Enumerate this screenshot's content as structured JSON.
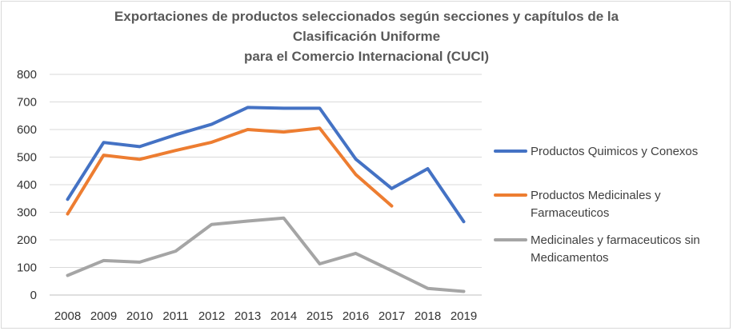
{
  "chart_data": {
    "type": "line",
    "title_lines": [
      "Exportaciones de productos seleccionados según secciones y capítulos de la",
      "Clasificación Uniforme",
      "para el Comercio Internacional (CUCI)"
    ],
    "xlabel": "",
    "ylabel": "",
    "categories": [
      "2008",
      "2009",
      "2010",
      "2011",
      "2012",
      "2013",
      "2014",
      "2015",
      "2016",
      "2017",
      "2018",
      "2019"
    ],
    "ylim": [
      0,
      800
    ],
    "yticks": [
      "0",
      "100",
      "200",
      "300",
      "400",
      "500",
      "600",
      "700",
      "800"
    ],
    "grid": "horizontal",
    "legend_position": "right",
    "series": [
      {
        "name": "Productos Quimicos y Conexos",
        "legend_lines": [
          "Productos Quimicos y Conexos"
        ],
        "color": "#4472C4",
        "values": [
          347,
          553,
          538,
          581,
          619,
          680,
          677,
          677,
          493,
          386,
          458,
          266
        ]
      },
      {
        "name": "Productos Medicinales y Farmaceuticos",
        "legend_lines": [
          "Productos Medicinales y",
          "Farmaceuticos"
        ],
        "color": "#ED7D31",
        "values": [
          294,
          507,
          492,
          524,
          554,
          600,
          591,
          605,
          437,
          323,
          null,
          null
        ]
      },
      {
        "name": "Medicinales y farmaceuticos sin Medicamentos",
        "legend_lines": [
          "Medicinales y farmaceuticos sin",
          "Medicamentos"
        ],
        "color": "#A5A5A5",
        "values": [
          71,
          125,
          119,
          159,
          256,
          268,
          279,
          113,
          151,
          88,
          24,
          13
        ]
      }
    ]
  }
}
